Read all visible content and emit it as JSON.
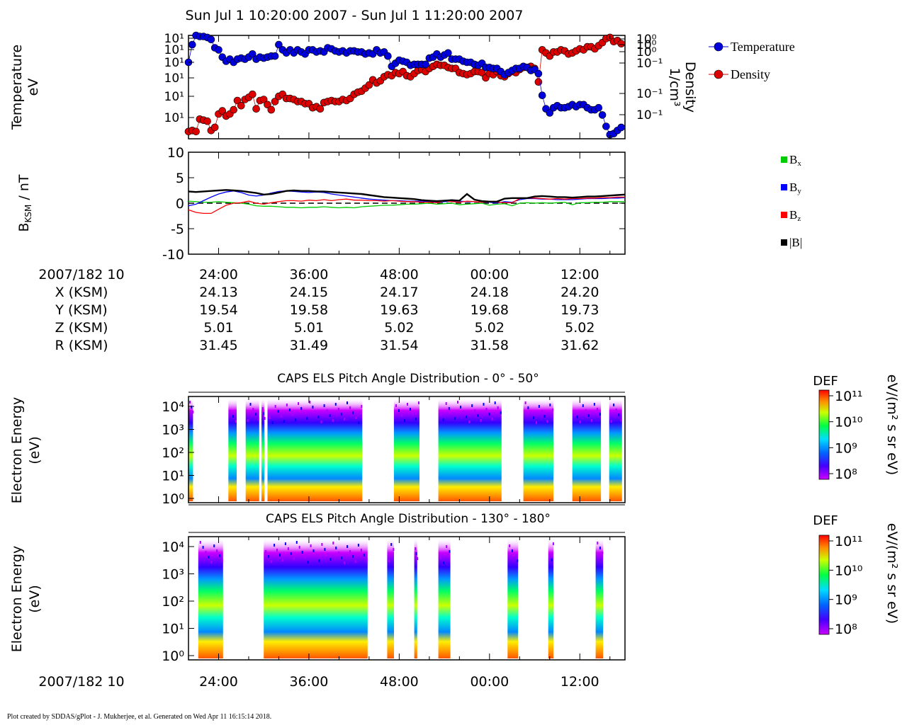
{
  "header": {
    "title": "Sun Jul 1 10:20:00 2007 - Sun Jul 1 11:20:00 2007",
    "footer": "Plot created by SDDAS/gPlot - J. Mukherjee, et al.  Generated on Wed Apr 11 16:15:14 2018."
  },
  "colors": {
    "temperature": "#0000dd",
    "density": "#dd0000",
    "bx": "#00cc00",
    "by": "#0000ff",
    "bz": "#ff0000",
    "bmag": "#000000"
  },
  "time_axis": {
    "ticks": [
      "24:00",
      "36:00",
      "48:00",
      "00:00",
      "12:00"
    ],
    "tick_values": [
      24,
      36,
      48,
      60,
      72
    ],
    "xlim": [
      20,
      78
    ],
    "date_label": "2007/182 10"
  },
  "ephemeris": {
    "rows": [
      {
        "label": "X (KSM)",
        "values": [
          "24.13",
          "24.15",
          "24.17",
          "24.18",
          "24.20"
        ]
      },
      {
        "label": "Y (KSM)",
        "values": [
          "19.54",
          "19.58",
          "19.63",
          "19.68",
          "19.73"
        ]
      },
      {
        "label": "Z (KSM)",
        "values": [
          "5.01",
          "5.01",
          "5.02",
          "5.02",
          "5.02"
        ]
      },
      {
        "label": "R (KSM)",
        "values": [
          "31.45",
          "31.49",
          "31.54",
          "31.58",
          "31.62"
        ]
      }
    ]
  },
  "chart_data": [
    {
      "id": "plasma",
      "type": "scatter",
      "ylabel": "Temperature eV",
      "y2label": "Density 1/cm³",
      "ytick_labels": [
        "10¹",
        "10¹",
        "10¹",
        "10¹",
        "10¹",
        "10¹"
      ],
      "y2tick_labels": [
        "10⁰",
        "10⁰",
        "10⁰",
        "10⁻¹",
        "10⁻¹",
        "10⁻¹"
      ],
      "legend": [
        "Temperature",
        "Density"
      ],
      "x": [
        20.0,
        20.5,
        21.0,
        21.5,
        22.0,
        22.5,
        23.0,
        23.5,
        24.0,
        24.5,
        25.0,
        25.5,
        26.0,
        26.5,
        27.0,
        27.5,
        28.0,
        28.5,
        29.0,
        29.5,
        30.0,
        30.5,
        31.0,
        31.5,
        32.0,
        32.5,
        33.0,
        33.5,
        34.0,
        34.5,
        35.0,
        35.5,
        36.0,
        36.5,
        37.0,
        37.5,
        38.0,
        38.5,
        39.0,
        39.5,
        40.0,
        40.5,
        41.0,
        41.5,
        42.0,
        42.5,
        43.0,
        43.5,
        44.0,
        44.5,
        45.0,
        45.5,
        46.0,
        46.5,
        47.0,
        47.5,
        48.0,
        48.5,
        49.0,
        49.5,
        50.0,
        50.5,
        51.0,
        51.5,
        52.0,
        52.5,
        53.0,
        53.5,
        54.0,
        54.5,
        55.0,
        55.5,
        56.0,
        56.5,
        57.0,
        57.5,
        58.0,
        58.5,
        59.0,
        59.5,
        60.0,
        60.5,
        61.0,
        61.5,
        62.0,
        62.5,
        63.0,
        63.5,
        64.0,
        64.5,
        65.0,
        65.5,
        66.0,
        66.5,
        67.0,
        67.5,
        68.0,
        68.5,
        69.0,
        69.5,
        70.0,
        70.5,
        71.0,
        71.5,
        72.0,
        72.5,
        73.0,
        73.5,
        74.0,
        74.5,
        75.0,
        75.5,
        76.0,
        76.5,
        77.0,
        77.5
      ],
      "temperature": [
        0.74,
        0.91,
        1.0,
        0.99,
        0.99,
        0.98,
        0.96,
        0.88,
        0.86,
        0.79,
        0.75,
        0.77,
        0.74,
        0.77,
        0.78,
        0.77,
        0.79,
        0.82,
        0.77,
        0.79,
        0.78,
        0.79,
        0.8,
        0.8,
        0.91,
        0.86,
        0.83,
        0.86,
        0.83,
        0.86,
        0.84,
        0.82,
        0.86,
        0.86,
        0.84,
        0.85,
        0.84,
        0.88,
        0.87,
        0.85,
        0.84,
        0.85,
        0.83,
        0.85,
        0.85,
        0.84,
        0.84,
        0.82,
        0.83,
        0.82,
        0.86,
        0.83,
        0.84,
        0.8,
        0.7,
        0.73,
        0.76,
        0.75,
        0.74,
        0.71,
        0.72,
        0.72,
        0.72,
        0.72,
        0.78,
        0.79,
        0.82,
        0.79,
        0.81,
        0.83,
        0.77,
        0.77,
        0.77,
        0.75,
        0.74,
        0.74,
        0.72,
        0.71,
        0.73,
        0.69,
        0.69,
        0.68,
        0.68,
        0.65,
        0.62,
        0.64,
        0.66,
        0.68,
        0.68,
        0.7,
        0.69,
        0.66,
        0.67,
        0.63,
        0.42,
        0.29,
        0.25,
        0.3,
        0.32,
        0.3,
        0.3,
        0.31,
        0.33,
        0.31,
        0.33,
        0.33,
        0.3,
        0.28,
        0.28,
        0.3,
        0.23,
        0.12,
        0.04,
        0.05,
        0.08,
        0.11,
        0.13,
        0.14,
        0.12,
        0.12
      ],
      "density": [
        0.07,
        0.08,
        0.07,
        0.19,
        0.18,
        0.17,
        0.08,
        0.11,
        0.24,
        0.27,
        0.22,
        0.24,
        0.28,
        0.37,
        0.32,
        0.38,
        0.4,
        0.43,
        0.29,
        0.37,
        0.38,
        0.33,
        0.28,
        0.36,
        0.41,
        0.43,
        0.39,
        0.39,
        0.38,
        0.36,
        0.36,
        0.34,
        0.34,
        0.3,
        0.31,
        0.29,
        0.35,
        0.36,
        0.37,
        0.36,
        0.36,
        0.38,
        0.37,
        0.39,
        0.43,
        0.45,
        0.46,
        0.49,
        0.52,
        0.57,
        0.54,
        0.56,
        0.6,
        0.62,
        0.61,
        0.64,
        0.63,
        0.65,
        0.61,
        0.6,
        0.63,
        0.66,
        0.67,
        0.65,
        0.68,
        0.7,
        0.72,
        0.71,
        0.71,
        0.69,
        0.68,
        0.68,
        0.64,
        0.63,
        0.62,
        0.63,
        0.65,
        0.65,
        0.64,
        0.59,
        0.63,
        0.62,
        0.65,
        0.61,
        0.6,
        0.63,
        0.65,
        0.64,
        0.67,
        0.69,
        0.69,
        0.7,
        0.68,
        0.55,
        0.86,
        0.83,
        0.8,
        0.84,
        0.84,
        0.86,
        0.85,
        0.82,
        0.83,
        0.85,
        0.87,
        0.86,
        0.89,
        0.89,
        0.87,
        0.9,
        0.93,
        0.97,
        0.98,
        0.94,
        0.95,
        0.92,
        0.89,
        0.9,
        0.88,
        0.86
      ]
    },
    {
      "id": "magnetic",
      "type": "line",
      "ylabel": "B KSM / nT",
      "ylim": [
        -10,
        10
      ],
      "ytick_labels": [
        "10",
        "5",
        "0",
        "-5",
        "-10"
      ],
      "legend": [
        "B_x",
        "B_y",
        "B_z",
        "|B|"
      ],
      "x": [
        20,
        21,
        22,
        23,
        24,
        25,
        26,
        27,
        28,
        29,
        30,
        31,
        32,
        33,
        34,
        35,
        36,
        37,
        38,
        39,
        40,
        41,
        42,
        43,
        44,
        45,
        46,
        47,
        48,
        49,
        50,
        51,
        52,
        53,
        54,
        55,
        56,
        57,
        58,
        59,
        60,
        61,
        62,
        63,
        64,
        65,
        66,
        67,
        68,
        69,
        70,
        71,
        72,
        73,
        74,
        75,
        76,
        77,
        78
      ],
      "series": [
        {
          "key": "bx",
          "values": [
            0.4,
            0.3,
            0.2,
            0.2,
            0.3,
            0.2,
            0.1,
            0.0,
            -0.2,
            -0.5,
            -0.6,
            -0.6,
            -0.7,
            -0.8,
            -0.8,
            -0.9,
            -0.8,
            -0.8,
            -0.7,
            -0.8,
            -0.9,
            -0.8,
            -0.9,
            -0.7,
            -0.6,
            -0.5,
            -0.4,
            -0.4,
            -0.3,
            -0.2,
            -0.2,
            -0.1,
            0.0,
            -0.2,
            -0.1,
            0.0,
            -0.3,
            -0.2,
            -0.1,
            0.0,
            -0.4,
            -0.2,
            -0.1,
            -0.5,
            0.0,
            0.1,
            0.0,
            0.1,
            0.0,
            0.1,
            0.2,
            -0.3,
            0.1,
            0.1,
            0.2,
            0.2,
            0.3,
            0.3,
            0.3
          ]
        },
        {
          "key": "by",
          "values": [
            -0.5,
            -0.2,
            0.5,
            1.2,
            1.8,
            2.2,
            2.4,
            2.1,
            1.6,
            1.4,
            1.6,
            2.0,
            2.3,
            2.4,
            2.3,
            2.2,
            2.1,
            2.2,
            2.1,
            1.8,
            1.6,
            1.4,
            1.2,
            1.0,
            0.8,
            0.7,
            0.6,
            0.5,
            0.5,
            0.4,
            0.4,
            0.4,
            0.3,
            0.2,
            0.3,
            0.4,
            0.4,
            0.3,
            0.3,
            0.2,
            0.2,
            0.0,
            0.3,
            0.2,
            0.7,
            0.9,
            0.9,
            0.8,
            0.8,
            0.7,
            0.7,
            0.7,
            0.8,
            0.9,
            0.9,
            0.9,
            1.0,
            1.0,
            1.1
          ]
        },
        {
          "key": "bz",
          "values": [
            -1.3,
            -1.8,
            -2.0,
            -2.0,
            -1.2,
            -0.4,
            0.0,
            0.1,
            0.4,
            0.0,
            -0.2,
            0.1,
            0.3,
            0.5,
            0.5,
            0.4,
            0.6,
            0.5,
            0.7,
            0.5,
            0.7,
            0.8,
            0.6,
            0.6,
            0.5,
            0.5,
            0.4,
            0.5,
            0.4,
            0.3,
            0.3,
            0.2,
            0.2,
            0.1,
            0.5,
            0.3,
            0.2,
            0.4,
            0.3,
            0.2,
            0.3,
            0.2,
            0.1,
            0.1,
            0.9,
            1.0,
            1.0,
            0.9,
            0.8,
            0.9,
            0.8,
            0.9,
            0.9,
            1.0,
            1.0,
            1.1,
            1.1,
            1.2,
            1.2
          ]
        },
        {
          "key": "bmag",
          "values": [
            2.3,
            2.2,
            2.3,
            2.4,
            2.5,
            2.6,
            2.5,
            2.4,
            2.2,
            2.0,
            1.7,
            1.8,
            2.1,
            2.4,
            2.5,
            2.4,
            2.4,
            2.3,
            2.3,
            2.2,
            2.1,
            2.0,
            1.9,
            1.8,
            1.6,
            1.4,
            1.2,
            1.1,
            1.0,
            0.9,
            0.8,
            0.6,
            0.5,
            0.4,
            0.5,
            0.6,
            0.5,
            1.8,
            0.7,
            0.4,
            0.3,
            0.3,
            0.9,
            1.0,
            1.0,
            1.0,
            1.3,
            1.4,
            1.3,
            1.2,
            1.2,
            1.1,
            1.2,
            1.3,
            1.3,
            1.4,
            1.5,
            1.6,
            1.7
          ]
        }
      ]
    },
    {
      "id": "els_low",
      "type": "heatmap",
      "title": "CAPS ELS Pitch Angle Distribution - 0° - 50°",
      "ylabel": "Electron Energy (eV)",
      "ytick_labels": [
        "10⁴",
        "10³",
        "10²",
        "10¹",
        "10⁰"
      ],
      "colorbar": {
        "label": "DEF",
        "units": "eV/(m² s sr eV)",
        "ticks": [
          "10¹¹",
          "10¹⁰",
          "10⁹",
          "10⁸"
        ]
      },
      "data_intervals": [
        [
          20.0,
          20.6
        ],
        [
          25.3,
          26.4
        ],
        [
          27.6,
          29.4
        ],
        [
          29.7,
          30.1
        ],
        [
          30.5,
          43.1
        ],
        [
          47.3,
          50.7
        ],
        [
          53.2,
          61.6
        ],
        [
          64.5,
          68.5
        ],
        [
          71.0,
          74.8
        ],
        [
          75.9,
          77.6
        ]
      ]
    },
    {
      "id": "els_high",
      "type": "heatmap",
      "title": "CAPS ELS Pitch Angle Distribution - 130° - 180°",
      "ylabel": "Electron Energy (eV)",
      "ytick_labels": [
        "10⁴",
        "10³",
        "10²",
        "10¹",
        "10⁰"
      ],
      "colorbar": {
        "label": "DEF",
        "units": "eV/(m² s sr eV)",
        "ticks": [
          "10¹¹",
          "10¹⁰",
          "10⁹",
          "10⁸"
        ]
      },
      "data_intervals": [
        [
          21.3,
          24.6
        ],
        [
          30.0,
          43.8
        ],
        [
          46.4,
          47.3
        ],
        [
          50.0,
          50.4
        ],
        [
          53.2,
          54.8
        ],
        [
          62.4,
          63.8
        ],
        [
          67.8,
          68.5
        ],
        [
          74.1,
          75.1
        ]
      ]
    }
  ]
}
